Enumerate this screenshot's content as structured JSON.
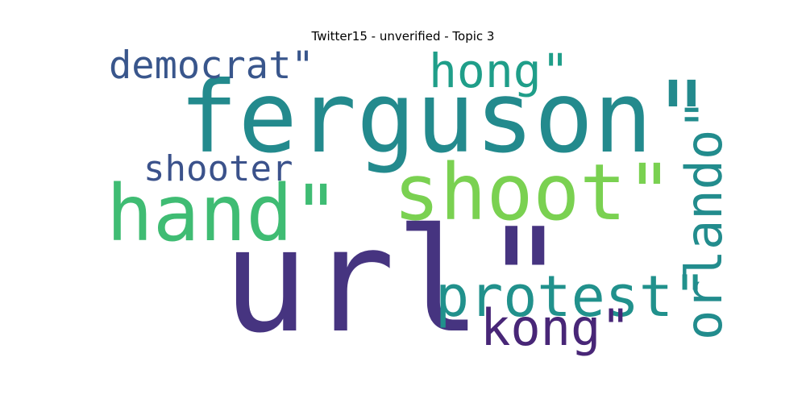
{
  "title": "Twitter15 - unverified - Topic 3",
  "words": [
    {
      "text": "url\"",
      "color": "#463480"
    },
    {
      "text": "ferguson\"",
      "color": "#238a8d"
    },
    {
      "text": "shoot\"",
      "color": "#7ad151"
    },
    {
      "text": "hand\"",
      "color": "#3fbc73"
    },
    {
      "text": "protest\"",
      "color": "#21918c"
    },
    {
      "text": "orlando\"",
      "color": "#228c8d"
    },
    {
      "text": "kong\"",
      "color": "#482677"
    },
    {
      "text": "hong\"",
      "color": "#1f9e89"
    },
    {
      "text": "democrat\"",
      "color": "#39568c"
    },
    {
      "text": "shooter",
      "color": "#3b528b"
    }
  ]
}
